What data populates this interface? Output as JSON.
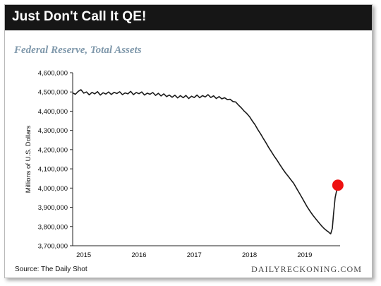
{
  "title": "Just Don't Call It QE!",
  "subtitle": "Federal Reserve, Total Assets",
  "source": "Source: The Daily Shot",
  "brand": "DAILYRECKONING.COM",
  "colors": {
    "line": "#1a1a1a",
    "marker": "#ee1111",
    "title_bg": "#161616",
    "subtitle": "#7f98ab"
  },
  "chart_data": {
    "type": "line",
    "title": "Federal Reserve, Total Assets",
    "xlabel": "",
    "ylabel": "Millions of U.S. Dollars",
    "ylim": [
      3700000,
      4600000
    ],
    "xlim": [
      2015.0,
      2019.84
    ],
    "y_ticks": [
      3700000,
      3800000,
      3900000,
      4000000,
      4100000,
      4200000,
      4300000,
      4400000,
      4500000,
      4600000
    ],
    "y_tick_labels": [
      "3,700,000",
      "3,800,000",
      "3,900,000",
      "4,000,000",
      "4,100,000",
      "4,200,000",
      "4,300,000",
      "4,400,000",
      "4,500,000",
      "4,600,000"
    ],
    "x_tick_labels": [
      "2015",
      "2016",
      "2017",
      "2018",
      "2019"
    ],
    "x_tick_positions": [
      2015.2,
      2016.2,
      2017.2,
      2018.2,
      2019.2
    ],
    "grid": false,
    "legend": "none",
    "highlight_last_point": true,
    "series": [
      {
        "x": [
          2015.0,
          2015.05,
          2015.1,
          2015.15,
          2015.2,
          2015.25,
          2015.3,
          2015.35,
          2015.4,
          2015.45,
          2015.5,
          2015.55,
          2015.6,
          2015.65,
          2015.7,
          2015.75,
          2015.8,
          2015.85,
          2015.9,
          2015.95,
          2016.0,
          2016.05,
          2016.1,
          2016.15,
          2016.2,
          2016.25,
          2016.3,
          2016.35,
          2016.4,
          2016.45,
          2016.5,
          2016.55,
          2016.6,
          2016.65,
          2016.7,
          2016.75,
          2016.8,
          2016.85,
          2016.9,
          2016.95,
          2017.0,
          2017.05,
          2017.1,
          2017.15,
          2017.2,
          2017.25,
          2017.3,
          2017.35,
          2017.4,
          2017.45,
          2017.5,
          2017.55,
          2017.6,
          2017.65,
          2017.7,
          2017.75,
          2017.8,
          2017.85,
          2017.9,
          2017.95,
          2018.0,
          2018.05,
          2018.1,
          2018.15,
          2018.2,
          2018.25,
          2018.3,
          2018.35,
          2018.4,
          2018.45,
          2018.5,
          2018.55,
          2018.6,
          2018.65,
          2018.7,
          2018.75,
          2018.8,
          2018.85,
          2018.9,
          2018.95,
          2019.0,
          2019.05,
          2019.1,
          2019.15,
          2019.2,
          2019.25,
          2019.3,
          2019.35,
          2019.4,
          2019.45,
          2019.5,
          2019.55,
          2019.6,
          2019.63,
          2019.65,
          2019.67,
          2019.7,
          2019.72,
          2019.75,
          2019.78,
          2019.8
        ],
        "values": [
          4495000,
          4488000,
          4503000,
          4512000,
          4494000,
          4500000,
          4485000,
          4498000,
          4490000,
          4502000,
          4484000,
          4496000,
          4489000,
          4500000,
          4487000,
          4498000,
          4492000,
          4501000,
          4486000,
          4495000,
          4490000,
          4503000,
          4486000,
          4497000,
          4491000,
          4500000,
          4484000,
          4494000,
          4488000,
          4497000,
          4482000,
          4493000,
          4479000,
          4490000,
          4476000,
          4484000,
          4472000,
          4483000,
          4469000,
          4481000,
          4470000,
          4482000,
          4466000,
          4478000,
          4471000,
          4484000,
          4470000,
          4481000,
          4474000,
          4486000,
          4471000,
          4480000,
          4466000,
          4476000,
          4464000,
          4470000,
          4460000,
          4462000,
          4450000,
          4448000,
          4432000,
          4418000,
          4402000,
          4388000,
          4372000,
          4350000,
          4330000,
          4305000,
          4283000,
          4258000,
          4235000,
          4210000,
          4188000,
          4165000,
          4145000,
          4122000,
          4100000,
          4080000,
          4062000,
          4043000,
          4025000,
          4000000,
          3975000,
          3950000,
          3925000,
          3900000,
          3878000,
          3858000,
          3840000,
          3822000,
          3805000,
          3790000,
          3778000,
          3772000,
          3766000,
          3762000,
          3790000,
          3860000,
          3950000,
          3990000,
          4015000
        ]
      }
    ]
  }
}
